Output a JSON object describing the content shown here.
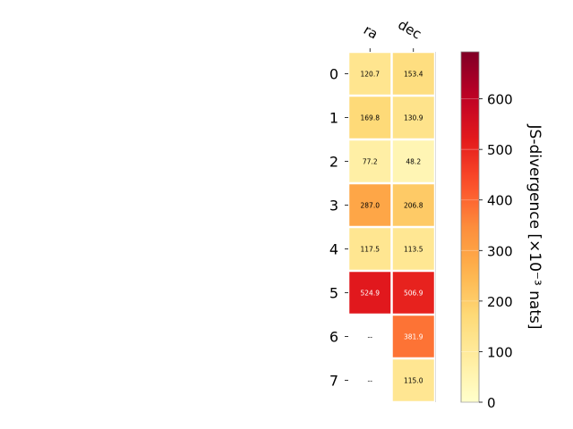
{
  "chart_data": {
    "type": "heatmap",
    "title": "",
    "x_categories": [
      "ra",
      "dec"
    ],
    "y_categories": [
      "0",
      "1",
      "2",
      "3",
      "4",
      "5",
      "6",
      "7"
    ],
    "values": [
      [
        120.7,
        153.4
      ],
      [
        169.8,
        130.9
      ],
      [
        77.2,
        48.2
      ],
      [
        287.0,
        206.8
      ],
      [
        117.5,
        113.5
      ],
      [
        524.9,
        506.9
      ],
      [
        null,
        381.9
      ],
      [
        null,
        115.0
      ]
    ],
    "cell_labels": [
      [
        "120.7",
        "153.4"
      ],
      [
        "169.8",
        "130.9"
      ],
      [
        "77.2",
        "48.2"
      ],
      [
        "287.0",
        "206.8"
      ],
      [
        "117.5",
        "113.5"
      ],
      [
        "524.9",
        "506.9"
      ],
      [
        "--",
        "381.9"
      ],
      [
        "--",
        "115.0"
      ]
    ],
    "missing_label": "--",
    "colorbar": {
      "label": "JS-divergence [×10⁻³ nats]",
      "colormap": "YlOrRd",
      "vmin": 0,
      "vmax": 693,
      "ticks": [
        0,
        100,
        200,
        300,
        400,
        500,
        600
      ],
      "tick_labels": [
        "0",
        "100",
        "200",
        "300",
        "400",
        "500",
        "600"
      ]
    },
    "grid": false
  }
}
